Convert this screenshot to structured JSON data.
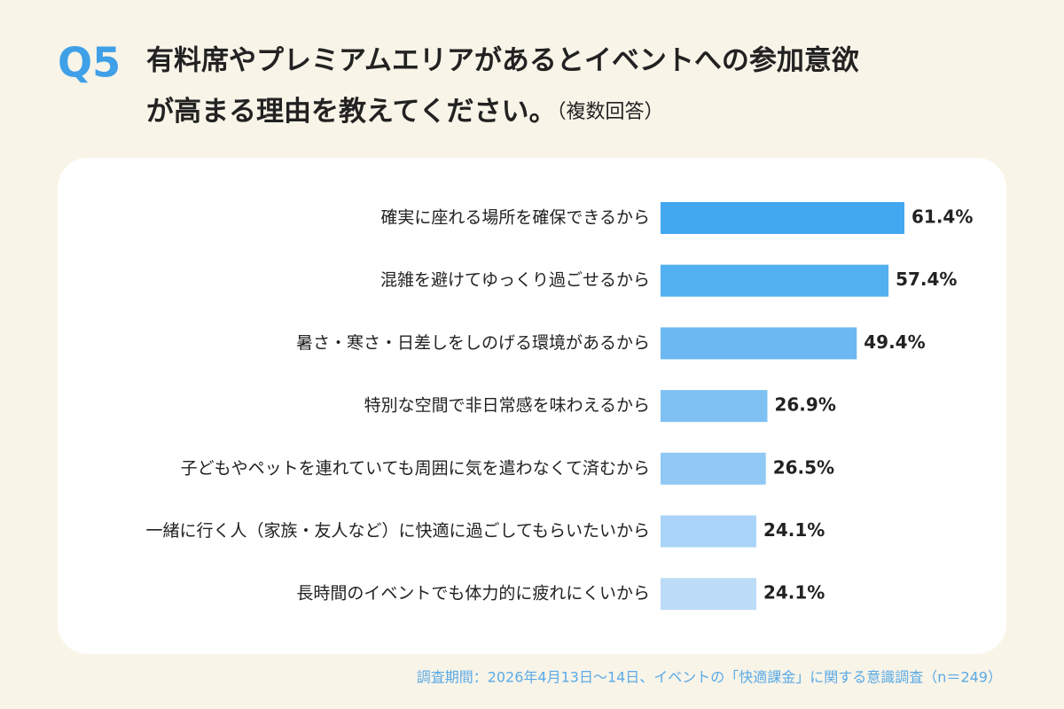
{
  "chart_data": {
    "type": "bar",
    "orientation": "horizontal",
    "question_number": "Q5",
    "title": [
      "有料席やプレミアムエリアがあるとイベントへの参加意欲",
      "が高まる理由を教えてください。"
    ],
    "title_note": "（複数回答）",
    "categories": [
      "確実に座れる場所を確保できるから",
      "混雑を避けてゆっくり過ごせるから",
      "暑さ・寒さ・日差しをしのげる環境があるから",
      "特別な空間で非日常感を味わえるから",
      "子どもやペットを連れていても周囲に気を遣わなくて済むから",
      "一緒に行く人（家族・友人など）に快適に過ごしてもらいたいから",
      "長時間のイベントでも体力的に疲れにくいから"
    ],
    "values": [
      61.4,
      57.4,
      49.4,
      26.9,
      26.5,
      24.1,
      24.1
    ],
    "value_labels": [
      "61.4%",
      "57.4%",
      "49.4%",
      "26.9%",
      "26.5%",
      "24.1%",
      "24.1%"
    ],
    "colors": [
      "#42a8f0",
      "#52aff0",
      "#6bb8f2",
      "#7fc1f3",
      "#90c9f5",
      "#a9d4f7",
      "#bcdcf7"
    ],
    "source": "調査期間：2026年4月13日～14日、イベントの「快適課金」に関する意識調査（n＝249）"
  }
}
